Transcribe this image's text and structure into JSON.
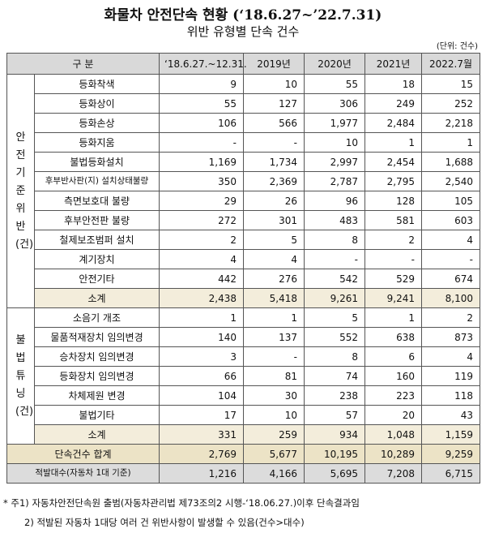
{
  "header": {
    "title": "화물차 안전단속 현황 (‘18.6.27~’22.7.31)",
    "subtitle": "위반 유형별 단속 건수",
    "unit": "(단위: 건수)"
  },
  "table": {
    "columns": [
      "구 분",
      "‘18.6.27.~12.31.",
      "2019년",
      "2020년",
      "2021년",
      "2022.7월"
    ],
    "groups": [
      {
        "label": "안전기준 위반(건)",
        "rows": [
          [
            "등화착색",
            "9",
            "10",
            "55",
            "18",
            "15"
          ],
          [
            "등화상이",
            "55",
            "127",
            "306",
            "249",
            "252"
          ],
          [
            "등화손상",
            "106",
            "566",
            "1,977",
            "2,484",
            "2,218"
          ],
          [
            "등화지움",
            "-",
            "-",
            "10",
            "1",
            "1"
          ],
          [
            "불법등화설치",
            "1,169",
            "1,734",
            "2,997",
            "2,454",
            "1,688"
          ],
          [
            "후부반사판(지) 설치상태불량",
            "350",
            "2,369",
            "2,787",
            "2,795",
            "2,540"
          ],
          [
            "측면보호대 불량",
            "29",
            "26",
            "96",
            "128",
            "105"
          ],
          [
            "후부안전판 불량",
            "272",
            "301",
            "483",
            "581",
            "603"
          ],
          [
            "철제보조범퍼 설치",
            "2",
            "5",
            "8",
            "2",
            "4"
          ],
          [
            "계기장치",
            "4",
            "4",
            "-",
            "-",
            "-"
          ],
          [
            "안전기타",
            "442",
            "276",
            "542",
            "529",
            "674"
          ]
        ],
        "subtotal": [
          "소계",
          "2,438",
          "5,418",
          "9,261",
          "9,241",
          "8,100"
        ]
      },
      {
        "label": "불법튜닝(건)",
        "rows": [
          [
            "소음기 개조",
            "1",
            "1",
            "5",
            "1",
            "2"
          ],
          [
            "물품적재장치 임의변경",
            "140",
            "137",
            "552",
            "638",
            "873"
          ],
          [
            "승차장치 임의변경",
            "3",
            "-",
            "8",
            "6",
            "4"
          ],
          [
            "등화장치 임의변경",
            "66",
            "81",
            "74",
            "160",
            "119"
          ],
          [
            "차체제원 변경",
            "104",
            "30",
            "238",
            "223",
            "118"
          ],
          [
            "불법기타",
            "17",
            "10",
            "57",
            "20",
            "43"
          ]
        ],
        "subtotal": [
          "소계",
          "331",
          "259",
          "934",
          "1,048",
          "1,159"
        ]
      }
    ],
    "totals": [
      [
        "단속건수 합계",
        "2,769",
        "5,677",
        "10,195",
        "10,289",
        "9,259"
      ],
      [
        "적발대수(자동차 1대 기준)",
        "1,216",
        "4,166",
        "5,695",
        "7,208",
        "6,715"
      ]
    ]
  },
  "notes": [
    "* 주1) 자동차안전단속원 출범(자동차관리법 제73조의2 시행-‘18.06.27.)이후 단속결과임",
    "2) 적발된 자동차 1대당 여러 건 위반사항이 발생할 수 있음(건수>대수)"
  ]
}
